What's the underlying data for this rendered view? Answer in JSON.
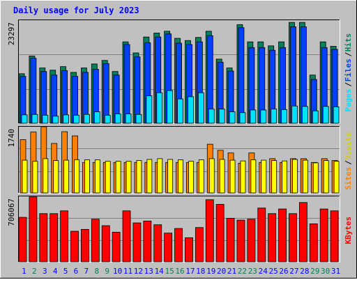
{
  "chart_data": [
    {
      "type": "bar",
      "title": "Daily usage for July 2023",
      "categories": [
        "1",
        "2",
        "3",
        "4",
        "5",
        "6",
        "7",
        "8",
        "9",
        "10",
        "11",
        "12",
        "13",
        "14",
        "15",
        "16",
        "17",
        "18",
        "19",
        "20",
        "21",
        "22",
        "23",
        "24",
        "25",
        "26",
        "27",
        "28",
        "29",
        "30",
        "31"
      ],
      "y_max_label": "23297",
      "ylim": [
        0,
        23297
      ],
      "grid": true,
      "legend": [
        "Pages",
        "Files",
        "Hits"
      ],
      "series": [
        {
          "name": "Hits",
          "values": [
            11200,
            15200,
            12500,
            12000,
            12800,
            11500,
            12500,
            13400,
            14200,
            11700,
            18400,
            15900,
            19500,
            20400,
            20800,
            19200,
            18700,
            19400,
            20800,
            14500,
            12500,
            22300,
            18400,
            18400,
            17500,
            18400,
            22800,
            22800,
            10900,
            18400,
            17400
          ]
        },
        {
          "name": "Files",
          "values": [
            10600,
            14700,
            11700,
            10900,
            11900,
            10600,
            11500,
            12200,
            13500,
            10900,
            17800,
            15000,
            18200,
            19500,
            20200,
            18100,
            17800,
            18400,
            19800,
            13800,
            11800,
            21600,
            17100,
            17100,
            16500,
            17100,
            21800,
            21800,
            9900,
            17100,
            16700
          ]
        },
        {
          "name": "Pages",
          "values": [
            1900,
            2000,
            1800,
            1600,
            1900,
            1800,
            2000,
            2600,
            1800,
            2100,
            2100,
            2000,
            6200,
            6900,
            7400,
            5500,
            6000,
            6900,
            3200,
            3200,
            2600,
            2400,
            3000,
            3000,
            3200,
            3100,
            3900,
            3800,
            2800,
            3800,
            3700
          ]
        }
      ],
      "colors": {
        "Hits": "#00805c",
        "Files": "#0040ff",
        "Pages": "#00e0ff"
      }
    },
    {
      "type": "bar",
      "y_max_label": "1740",
      "ylim": [
        0,
        1740
      ],
      "grid": true,
      "legend": [
        "Sites",
        "Visits"
      ],
      "series": [
        {
          "name": "Visits",
          "values": [
            1400,
            1600,
            1740,
            1300,
            1610,
            1500,
            800,
            800,
            800,
            800,
            800,
            800,
            800,
            800,
            800,
            800,
            800,
            800,
            1280,
            1120,
            1050,
            780,
            1050,
            800,
            900,
            800,
            900,
            900,
            800,
            900,
            850
          ]
        },
        {
          "name": "Sites",
          "values": [
            860,
            830,
            900,
            850,
            860,
            870,
            870,
            870,
            830,
            830,
            830,
            850,
            880,
            900,
            880,
            870,
            830,
            870,
            900,
            880,
            860,
            840,
            870,
            860,
            850,
            840,
            880,
            860,
            790,
            850,
            830
          ]
        }
      ],
      "colors": {
        "Visits": "#ff8000",
        "Sites": "#ffff00"
      }
    },
    {
      "type": "bar",
      "y_max_label": "706067",
      "ylim": [
        0,
        706067
      ],
      "grid": true,
      "legend": [
        "KBytes"
      ],
      "series": [
        {
          "name": "KBytes",
          "values": [
            480000,
            700000,
            520000,
            520000,
            550000,
            330000,
            350000,
            460000,
            390000,
            320000,
            550000,
            420000,
            440000,
            400000,
            310000,
            360000,
            260000,
            370000,
            670000,
            620000,
            470000,
            450000,
            460000,
            580000,
            520000,
            570000,
            520000,
            640000,
            410000,
            570000,
            550000
          ]
        }
      ],
      "colors": {
        "KBytes": "#ff0000"
      }
    }
  ],
  "weekend_days": [
    "2",
    "8",
    "9",
    "15",
    "16",
    "22",
    "23",
    "29",
    "30"
  ],
  "colors": {
    "background": "#c0c0c0",
    "title": "#0000ff",
    "weekday_label": "#0000ff",
    "weekend_label": "#00805c",
    "grid": "#808080",
    "slash": "#000000"
  }
}
